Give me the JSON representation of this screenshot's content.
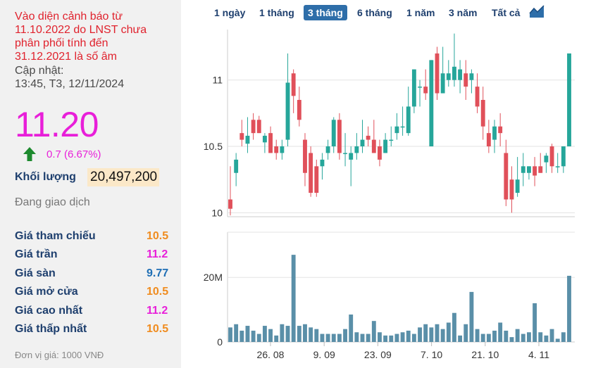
{
  "warning": {
    "lines": [
      "Vào diện cảnh báo từ",
      "11.10.2022 do LNST chưa",
      "phân phối tính đến",
      "31.12.2021 là số âm"
    ]
  },
  "update": {
    "label": "Cập nhật:",
    "time": "13:45, T3, 12/11/2024"
  },
  "quote": {
    "price": "11.20",
    "change": "0.7 (6.67%)",
    "direction": "up",
    "volume_label": "Khối lượng",
    "volume": "20,497,200",
    "status": "Đang giao dịch"
  },
  "stats": [
    {
      "label": "Giá tham chiếu",
      "value": "10.5",
      "color": "#f08c1f"
    },
    {
      "label": "Giá trần",
      "value": "11.2",
      "color": "#e81fd9"
    },
    {
      "label": "Giá sàn",
      "value": "9.77",
      "color": "#1f6fb5"
    },
    {
      "label": "Giá mở cửa",
      "value": "10.5",
      "color": "#f08c1f"
    },
    {
      "label": "Giá cao nhất",
      "value": "11.2",
      "color": "#e81fd9"
    },
    {
      "label": "Giá thấp nhất",
      "value": "10.5",
      "color": "#f08c1f"
    }
  ],
  "unit_note": "Đơn vị giá: 1000 VNĐ",
  "range_tabs": [
    {
      "label": "1 ngày",
      "active": false
    },
    {
      "label": "1 tháng",
      "active": false
    },
    {
      "label": "3 tháng",
      "active": true
    },
    {
      "label": "6 tháng",
      "active": false
    },
    {
      "label": "1 năm",
      "active": false
    },
    {
      "label": "3 năm",
      "active": false
    },
    {
      "label": "Tất cả",
      "active": false
    }
  ],
  "colors": {
    "up": "#26a69a",
    "down": "#e0505a",
    "volume": "#5a8fa8",
    "accent": "#2e6ea9",
    "ceiling": "#e81fd9"
  },
  "chart_data": [
    {
      "type": "candlestick",
      "ylim": [
        9.97,
        11.38
      ],
      "yticks": [
        10,
        10.5,
        11
      ],
      "ytick_labels": [
        "10",
        "10.5",
        "11"
      ],
      "grid": true,
      "xtick_labels": [
        "26. 08",
        "9. 09",
        "23. 09",
        "7. 10",
        "21. 10",
        "4. 11"
      ],
      "candles": [
        {
          "o": 10.1,
          "h": 10.35,
          "l": 9.98,
          "c": 10.03
        },
        {
          "o": 10.3,
          "h": 10.45,
          "l": 10.2,
          "c": 10.4
        },
        {
          "o": 10.6,
          "h": 10.7,
          "l": 10.5,
          "c": 10.55
        },
        {
          "o": 10.52,
          "h": 10.72,
          "l": 10.45,
          "c": 10.58
        },
        {
          "o": 10.7,
          "h": 10.75,
          "l": 10.55,
          "c": 10.6
        },
        {
          "o": 10.7,
          "h": 10.73,
          "l": 10.6,
          "c": 10.6
        },
        {
          "o": 10.53,
          "h": 10.6,
          "l": 10.45,
          "c": 10.58
        },
        {
          "o": 10.6,
          "h": 10.65,
          "l": 10.45,
          "c": 10.45
        },
        {
          "o": 10.5,
          "h": 10.55,
          "l": 10.4,
          "c": 10.45
        },
        {
          "o": 10.45,
          "h": 10.55,
          "l": 10.4,
          "c": 10.5
        },
        {
          "o": 10.55,
          "h": 11.2,
          "l": 10.5,
          "c": 10.98
        },
        {
          "o": 11.05,
          "h": 11.08,
          "l": 10.75,
          "c": 10.88
        },
        {
          "o": 10.85,
          "h": 10.95,
          "l": 10.65,
          "c": 10.7
        },
        {
          "o": 10.55,
          "h": 10.6,
          "l": 10.2,
          "c": 10.3
        },
        {
          "o": 10.45,
          "h": 10.5,
          "l": 10.12,
          "c": 10.15
        },
        {
          "o": 10.35,
          "h": 10.4,
          "l": 10.12,
          "c": 10.15
        },
        {
          "o": 10.35,
          "h": 10.45,
          "l": 10.25,
          "c": 10.4
        },
        {
          "o": 10.45,
          "h": 10.55,
          "l": 10.4,
          "c": 10.5
        },
        {
          "o": 10.5,
          "h": 10.72,
          "l": 10.45,
          "c": 10.7
        },
        {
          "o": 10.7,
          "h": 10.75,
          "l": 10.4,
          "c": 10.45
        },
        {
          "o": 10.45,
          "h": 10.6,
          "l": 10.35,
          "c": 10.45
        },
        {
          "o": 10.4,
          "h": 10.5,
          "l": 10.2,
          "c": 10.45
        },
        {
          "o": 10.45,
          "h": 10.6,
          "l": 10.4,
          "c": 10.5
        },
        {
          "o": 10.5,
          "h": 10.7,
          "l": 10.45,
          "c": 10.55
        },
        {
          "o": 10.58,
          "h": 10.65,
          "l": 10.5,
          "c": 10.55
        },
        {
          "o": 10.55,
          "h": 10.7,
          "l": 10.45,
          "c": 10.45
        },
        {
          "o": 10.5,
          "h": 10.55,
          "l": 10.35,
          "c": 10.4
        },
        {
          "o": 10.45,
          "h": 10.6,
          "l": 10.45,
          "c": 10.55
        },
        {
          "o": 10.55,
          "h": 10.65,
          "l": 10.5,
          "c": 10.55
        },
        {
          "o": 10.6,
          "h": 10.75,
          "l": 10.55,
          "c": 10.65
        },
        {
          "o": 10.65,
          "h": 10.8,
          "l": 10.58,
          "c": 10.65
        },
        {
          "o": 10.6,
          "h": 10.95,
          "l": 10.58,
          "c": 10.8
        },
        {
          "o": 10.8,
          "h": 11.08,
          "l": 10.75,
          "c": 11.08
        },
        {
          "o": 10.95,
          "h": 11.0,
          "l": 10.8,
          "c": 10.95
        },
        {
          "o": 10.95,
          "h": 11.08,
          "l": 10.85,
          "c": 10.9
        },
        {
          "o": 10.5,
          "h": 11.15,
          "l": 10.5,
          "c": 11.15
        },
        {
          "o": 11.2,
          "h": 11.25,
          "l": 10.85,
          "c": 10.9
        },
        {
          "o": 10.9,
          "h": 11.25,
          "l": 10.9,
          "c": 11.05
        },
        {
          "o": 11.0,
          "h": 11.15,
          "l": 10.95,
          "c": 11.05
        },
        {
          "o": 11.0,
          "h": 11.35,
          "l": 10.95,
          "c": 11.1
        },
        {
          "o": 11.0,
          "h": 11.15,
          "l": 10.9,
          "c": 11.08
        },
        {
          "o": 11.05,
          "h": 11.15,
          "l": 10.85,
          "c": 10.95
        },
        {
          "o": 11.0,
          "h": 11.08,
          "l": 10.9,
          "c": 11.05
        },
        {
          "o": 10.95,
          "h": 11.05,
          "l": 10.75,
          "c": 10.8
        },
        {
          "o": 10.85,
          "h": 10.95,
          "l": 10.55,
          "c": 10.65
        },
        {
          "o": 10.6,
          "h": 10.7,
          "l": 10.45,
          "c": 10.5
        },
        {
          "o": 10.55,
          "h": 10.7,
          "l": 10.45,
          "c": 10.65
        },
        {
          "o": 10.65,
          "h": 10.75,
          "l": 10.5,
          "c": 10.6
        },
        {
          "o": 10.45,
          "h": 10.55,
          "l": 10.05,
          "c": 10.1
        },
        {
          "o": 10.25,
          "h": 10.35,
          "l": 10.0,
          "c": 10.1
        },
        {
          "o": 10.15,
          "h": 10.42,
          "l": 10.12,
          "c": 10.25
        },
        {
          "o": 10.3,
          "h": 10.45,
          "l": 10.2,
          "c": 10.35
        },
        {
          "o": 10.3,
          "h": 10.35,
          "l": 10.25,
          "c": 10.35
        },
        {
          "o": 10.35,
          "h": 10.42,
          "l": 10.2,
          "c": 10.28
        },
        {
          "o": 10.35,
          "h": 10.45,
          "l": 10.3,
          "c": 10.3
        },
        {
          "o": 10.38,
          "h": 10.45,
          "l": 10.3,
          "c": 10.43
        },
        {
          "o": 10.5,
          "h": 10.52,
          "l": 10.3,
          "c": 10.35
        },
        {
          "o": 10.35,
          "h": 10.45,
          "l": 10.3,
          "c": 10.35
        },
        {
          "o": 10.35,
          "h": 10.5,
          "l": 10.3,
          "c": 10.5
        },
        {
          "o": 10.5,
          "h": 11.2,
          "l": 10.5,
          "c": 11.2
        }
      ]
    },
    {
      "type": "bar",
      "yticks": [
        0,
        20
      ],
      "ytick_labels": [
        "0",
        "20M"
      ],
      "ylim": [
        0,
        34
      ],
      "values": [
        4.5,
        5.5,
        3.5,
        5,
        3.5,
        2.5,
        5,
        4,
        2,
        5.5,
        5,
        27,
        5,
        5.5,
        4.5,
        4,
        2.5,
        2.5,
        2.5,
        2.5,
        4,
        8.5,
        3,
        2.5,
        2.5,
        6.5,
        3,
        2,
        2,
        2.5,
        3,
        3.5,
        2.5,
        4.5,
        5.5,
        4.5,
        5.5,
        4,
        6,
        9,
        2,
        5.5,
        15.5,
        4,
        2.5,
        2.5,
        3.5,
        6,
        3.5,
        1.5,
        4,
        2.5,
        3,
        12,
        3,
        2,
        4,
        1,
        3,
        20.5
      ]
    }
  ]
}
